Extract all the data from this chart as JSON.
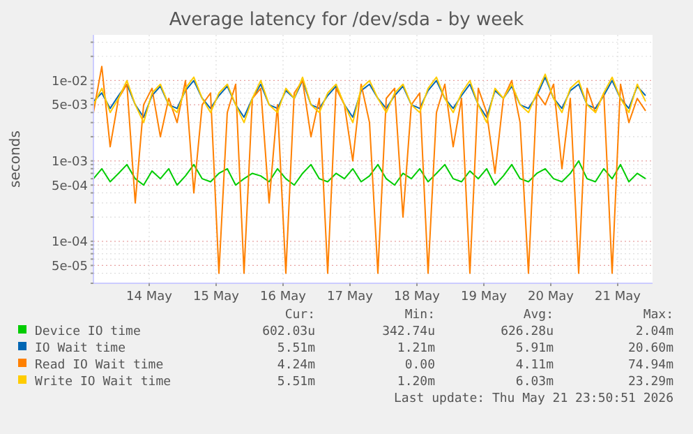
{
  "chart_data": {
    "type": "line",
    "title": "Average latency for /dev/sda - by week",
    "ylabel": "seconds",
    "log": "y",
    "grid": true,
    "legend": "bottom",
    "marker": "none",
    "line_style": "solid",
    "x": [
      "2026-05-13T16:00",
      "2026-05-13T19:00",
      "2026-05-13T22:00",
      "2026-05-14T01:00",
      "2026-05-14T04:00",
      "2026-05-14T07:00",
      "2026-05-14T10:00",
      "2026-05-14T13:00",
      "2026-05-14T16:00",
      "2026-05-14T19:00",
      "2026-05-14T22:00",
      "2026-05-15T01:00",
      "2026-05-15T04:00",
      "2026-05-15T07:00",
      "2026-05-15T10:00",
      "2026-05-15T13:00",
      "2026-05-15T16:00",
      "2026-05-15T19:00",
      "2026-05-15T22:00",
      "2026-05-16T01:00",
      "2026-05-16T04:00",
      "2026-05-16T07:00",
      "2026-05-16T10:00",
      "2026-05-16T13:00",
      "2026-05-16T16:00",
      "2026-05-16T19:00",
      "2026-05-16T22:00",
      "2026-05-17T01:00",
      "2026-05-17T04:00",
      "2026-05-17T07:00",
      "2026-05-17T10:00",
      "2026-05-17T13:00",
      "2026-05-17T16:00",
      "2026-05-17T19:00",
      "2026-05-17T22:00",
      "2026-05-18T01:00",
      "2026-05-18T04:00",
      "2026-05-18T07:00",
      "2026-05-18T10:00",
      "2026-05-18T13:00",
      "2026-05-18T16:00",
      "2026-05-18T19:00",
      "2026-05-18T22:00",
      "2026-05-19T01:00",
      "2026-05-19T04:00",
      "2026-05-19T07:00",
      "2026-05-19T10:00",
      "2026-05-19T13:00",
      "2026-05-19T16:00",
      "2026-05-19T19:00",
      "2026-05-19T22:00",
      "2026-05-20T01:00",
      "2026-05-20T04:00",
      "2026-05-20T07:00",
      "2026-05-20T10:00",
      "2026-05-20T13:00",
      "2026-05-20T16:00",
      "2026-05-20T19:00",
      "2026-05-20T22:00",
      "2026-05-21T01:00",
      "2026-05-21T04:00",
      "2026-05-21T07:00",
      "2026-05-21T10:00",
      "2026-05-21T13:00",
      "2026-05-21T16:00",
      "2026-05-21T19:00",
      "2026-05-21T22:00"
    ],
    "xlim": [
      "2026-05-13T16:00",
      "2026-05-22T00:30"
    ],
    "xticks": [
      {
        "value": "2026-05-14T12:00",
        "label": "14 May"
      },
      {
        "value": "2026-05-15T12:00",
        "label": "15 May"
      },
      {
        "value": "2026-05-16T12:00",
        "label": "16 May"
      },
      {
        "value": "2026-05-17T12:00",
        "label": "17 May"
      },
      {
        "value": "2026-05-18T12:00",
        "label": "18 May"
      },
      {
        "value": "2026-05-19T12:00",
        "label": "19 May"
      },
      {
        "value": "2026-05-20T12:00",
        "label": "20 May"
      },
      {
        "value": "2026-05-21T12:00",
        "label": "21 May"
      }
    ],
    "ylim": [
      3e-05,
      0.037
    ],
    "yticks": [
      {
        "value": 3e-05,
        "label": null
      },
      {
        "value": 4e-05,
        "label": null
      },
      {
        "value": 5e-05,
        "label": "5e-05"
      },
      {
        "value": 6e-05,
        "label": null
      },
      {
        "value": 7e-05,
        "label": null
      },
      {
        "value": 8e-05,
        "label": null
      },
      {
        "value": 9e-05,
        "label": null
      },
      {
        "value": 0.0001,
        "label": "1e-04"
      },
      {
        "value": 0.0002,
        "label": null
      },
      {
        "value": 0.0003,
        "label": null
      },
      {
        "value": 0.0004,
        "label": null
      },
      {
        "value": 0.0005,
        "label": "5e-04"
      },
      {
        "value": 0.0006,
        "label": null
      },
      {
        "value": 0.0007,
        "label": null
      },
      {
        "value": 0.0008,
        "label": null
      },
      {
        "value": 0.0009,
        "label": null
      },
      {
        "value": 0.001,
        "label": "1e-03"
      },
      {
        "value": 0.002,
        "label": null
      },
      {
        "value": 0.003,
        "label": null
      },
      {
        "value": 0.004,
        "label": null
      },
      {
        "value": 0.005,
        "label": "5e-03"
      },
      {
        "value": 0.006,
        "label": null
      },
      {
        "value": 0.007,
        "label": null
      },
      {
        "value": 0.008,
        "label": null
      },
      {
        "value": 0.009,
        "label": null
      },
      {
        "value": 0.01,
        "label": "1e-02"
      },
      {
        "value": 0.02,
        "label": null
      },
      {
        "value": 0.03,
        "label": null
      }
    ],
    "series": [
      {
        "name": "Device IO time",
        "color": "#00cc00",
        "values": [
          0.0006,
          0.0008,
          0.00055,
          0.0007,
          0.0009,
          0.0006,
          0.0005,
          0.00075,
          0.0006,
          0.0008,
          0.0005,
          0.00065,
          0.0009,
          0.0006,
          0.00055,
          0.0007,
          0.0008,
          0.0005,
          0.0006,
          0.0007,
          0.00065,
          0.00055,
          0.0008,
          0.0006,
          0.0005,
          0.0007,
          0.0009,
          0.0006,
          0.00055,
          0.0007,
          0.0006,
          0.0008,
          0.00055,
          0.00065,
          0.0009,
          0.0006,
          0.0005,
          0.0007,
          0.0006,
          0.0008,
          0.00055,
          0.0007,
          0.0009,
          0.0006,
          0.00055,
          0.00075,
          0.0006,
          0.0008,
          0.0005,
          0.00065,
          0.0009,
          0.0006,
          0.00055,
          0.0007,
          0.0008,
          0.0006,
          0.00055,
          0.0007,
          0.001,
          0.0006,
          0.00055,
          0.0008,
          0.0006,
          0.0009,
          0.00055,
          0.0007,
          0.0006
        ]
      },
      {
        "name": "IO Wait time",
        "color": "#0066b3",
        "values": [
          0.0055,
          0.007,
          0.0045,
          0.0065,
          0.009,
          0.005,
          0.0035,
          0.0065,
          0.0085,
          0.005,
          0.0045,
          0.0075,
          0.01,
          0.006,
          0.0045,
          0.0065,
          0.0085,
          0.005,
          0.0035,
          0.006,
          0.009,
          0.005,
          0.0045,
          0.0075,
          0.006,
          0.01,
          0.005,
          0.0045,
          0.0065,
          0.0085,
          0.005,
          0.0035,
          0.0075,
          0.009,
          0.006,
          0.0045,
          0.0065,
          0.0085,
          0.005,
          0.0045,
          0.0075,
          0.01,
          0.006,
          0.0045,
          0.0065,
          0.009,
          0.005,
          0.0035,
          0.0075,
          0.006,
          0.0085,
          0.005,
          0.0045,
          0.0065,
          0.011,
          0.006,
          0.0045,
          0.0075,
          0.009,
          0.005,
          0.0045,
          0.0065,
          0.01,
          0.006,
          0.0045,
          0.0085,
          0.0065
        ]
      },
      {
        "name": "Read IO Wait time",
        "color": "#ff8000",
        "values": [
          0.004,
          0.015,
          0.0015,
          0.006,
          0.009,
          0.0003,
          0.005,
          0.008,
          0.002,
          0.006,
          0.003,
          0.01,
          0.0004,
          0.005,
          0.007,
          4e-05,
          0.004,
          0.009,
          4e-05,
          0.006,
          0.008,
          0.0003,
          0.005,
          4e-05,
          0.007,
          0.01,
          0.002,
          0.006,
          4e-05,
          0.008,
          0.005,
          0.001,
          0.009,
          0.003,
          4e-05,
          0.006,
          0.008,
          0.0002,
          0.005,
          0.007,
          4e-05,
          0.004,
          0.009,
          0.0015,
          0.006,
          4e-05,
          0.008,
          0.004,
          0.0007,
          0.006,
          0.01,
          0.003,
          4e-05,
          0.007,
          0.005,
          0.009,
          0.0008,
          0.006,
          4e-05,
          0.008,
          0.004,
          0.007,
          4e-05,
          0.009,
          0.003,
          0.006,
          0.0042
        ]
      },
      {
        "name": "Write IO Wait time",
        "color": "#ffcc00",
        "values": [
          0.005,
          0.008,
          0.004,
          0.006,
          0.01,
          0.005,
          0.003,
          0.007,
          0.009,
          0.005,
          0.004,
          0.008,
          0.011,
          0.006,
          0.004,
          0.007,
          0.009,
          0.005,
          0.003,
          0.006,
          0.01,
          0.005,
          0.004,
          0.008,
          0.006,
          0.011,
          0.005,
          0.004,
          0.007,
          0.009,
          0.005,
          0.003,
          0.008,
          0.01,
          0.006,
          0.004,
          0.007,
          0.009,
          0.005,
          0.004,
          0.008,
          0.011,
          0.006,
          0.004,
          0.007,
          0.01,
          0.005,
          0.003,
          0.008,
          0.006,
          0.009,
          0.005,
          0.004,
          0.007,
          0.012,
          0.006,
          0.004,
          0.008,
          0.01,
          0.005,
          0.004,
          0.007,
          0.011,
          0.006,
          0.004,
          0.009,
          0.0055
        ]
      }
    ],
    "annotations": [
      "Cur:",
      "Min:",
      "Avg:",
      "Max:",
      "602.03u",
      "342.74u",
      "626.28u",
      "2.04m",
      "5.51m",
      "1.21m",
      "5.91m",
      "20.60m",
      "4.24m",
      "0.00",
      "4.11m",
      "74.94m",
      "5.51m",
      "1.20m",
      "6.03m",
      "23.29m",
      "Last update: Thu May 21 23:50:51 2026"
    ]
  }
}
